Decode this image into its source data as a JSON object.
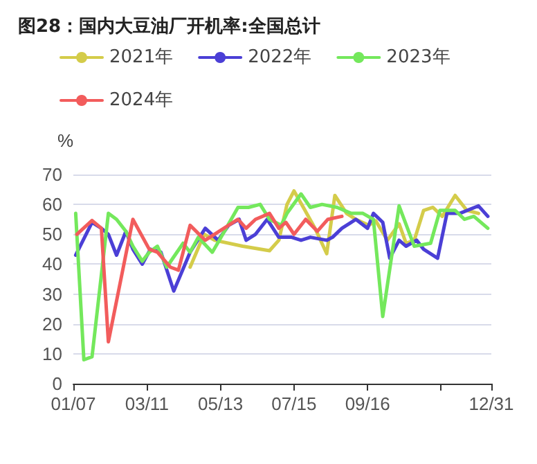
{
  "chart_data": {
    "type": "line",
    "title": "图28：国内大豆油厂开机率:全国总计",
    "ylabel": "%",
    "legend": "top left",
    "grid": "y",
    "marker": "none",
    "line_style": "solid",
    "xlim": [
      "--01-07",
      "--12-31"
    ],
    "xticks": [
      {
        "value": "--01-07",
        "label": "01/07"
      },
      {
        "value": "--03-11",
        "label": "03/11"
      },
      {
        "value": "--05-13",
        "label": "05/13"
      },
      {
        "value": "--07-15",
        "label": "07/15"
      },
      {
        "value": "--09-16",
        "label": "09/16"
      },
      {
        "value": "--11-18",
        "label": null
      },
      {
        "value": "--12-31",
        "label": "12/31"
      }
    ],
    "ylim": [
      0,
      70
    ],
    "yticks": [
      0,
      10,
      20,
      30,
      40,
      50,
      60,
      70
    ],
    "series": [
      {
        "name": "2021年",
        "color": "#d4cc4a",
        "x": [
          "--04-17",
          "--04-29",
          "--05-08",
          "--06-01",
          "--06-24",
          "--07-02",
          "--07-09",
          "--07-15",
          "--07-23",
          "--08-02",
          "--08-12",
          "--08-19",
          "--08-29",
          "--09-06",
          "--09-17",
          "--09-23",
          "--10-03",
          "--10-13",
          "--10-19",
          "--10-26",
          "--11-03",
          "--11-11",
          "--11-19",
          "--11-30",
          "--12-10",
          "--12-20"
        ],
        "values": [
          39,
          50,
          48,
          46,
          44.5,
          48,
          60,
          64.5,
          59,
          52,
          43.5,
          63,
          57,
          55,
          53,
          54.5,
          48,
          53.5,
          47,
          48,
          58,
          59,
          56,
          63,
          58,
          57
        ]
      },
      {
        "name": "2022年",
        "color": "#4b3fd6",
        "x": [
          "--01-09",
          "--01-23",
          "--01-31",
          "--02-06",
          "--02-13",
          "--02-21",
          "--02-27",
          "--03-07",
          "--03-14",
          "--03-23",
          "--04-03",
          "--04-17",
          "--04-30",
          "--05-11",
          "--05-20",
          "--05-29",
          "--06-04",
          "--06-12",
          "--06-22",
          "--07-02",
          "--07-13",
          "--07-21",
          "--07-29",
          "--08-12",
          "--08-17",
          "--08-25",
          "--09-06",
          "--09-16",
          "--09-21",
          "--09-29",
          "--10-05",
          "--10-13",
          "--10-19",
          "--10-28",
          "--11-03",
          "--11-15",
          "--11-23",
          "--12-04",
          "--12-20",
          "--12-28"
        ],
        "values": [
          43,
          54,
          52,
          50,
          43,
          51,
          45,
          40,
          45,
          44,
          31,
          44,
          52,
          48,
          53,
          55,
          48,
          50,
          55,
          49,
          49,
          48,
          49,
          48,
          49,
          52,
          55,
          52,
          57,
          54,
          42,
          48,
          46,
          48,
          45,
          42,
          57,
          57,
          59.5,
          56
        ]
      },
      {
        "name": "2023年",
        "color": "#74e85c",
        "x": [
          "--01-09",
          "--01-16",
          "--01-23",
          "--02-06",
          "--02-13",
          "--02-21",
          "--02-27",
          "--03-07",
          "--03-13",
          "--03-20",
          "--03-28",
          "--04-11",
          "--04-17",
          "--04-24",
          "--05-06",
          "--05-12",
          "--05-28",
          "--06-06",
          "--06-16",
          "--06-24",
          "--07-04",
          "--07-09",
          "--07-21",
          "--07-29",
          "--08-08",
          "--08-21",
          "--09-02",
          "--09-12",
          "--09-21",
          "--09-29",
          "--10-13",
          "--10-26",
          "--11-09",
          "--11-17",
          "--11-30",
          "--12-08",
          "--12-16",
          "--12-28"
        ],
        "values": [
          57,
          8,
          9,
          57,
          55,
          51,
          46,
          41,
          44,
          46,
          39,
          47,
          44,
          49,
          44,
          48,
          59,
          59,
          60,
          55,
          53,
          57,
          63.5,
          59,
          60,
          59,
          57,
          57,
          55,
          22.5,
          59.5,
          46,
          47,
          58,
          58,
          55,
          56,
          52
        ]
      },
      {
        "name": "2024年",
        "color": "#f25c5c",
        "x": [
          "--01-10",
          "--01-23",
          "--01-31",
          "--02-06",
          "--02-27",
          "--03-13",
          "--03-20",
          "--03-31",
          "--04-07",
          "--04-17",
          "--04-30",
          "--05-12",
          "--05-28",
          "--06-04",
          "--06-12",
          "--06-24",
          "--07-02",
          "--07-08",
          "--07-15",
          "--07-25",
          "--08-04",
          "--08-13",
          "--08-25"
        ],
        "values": [
          50,
          54.6,
          52,
          14,
          55,
          45,
          44,
          39,
          38,
          53,
          48,
          51,
          55,
          52,
          55,
          57,
          52,
          54,
          50,
          55,
          51,
          55,
          56
        ]
      }
    ]
  }
}
